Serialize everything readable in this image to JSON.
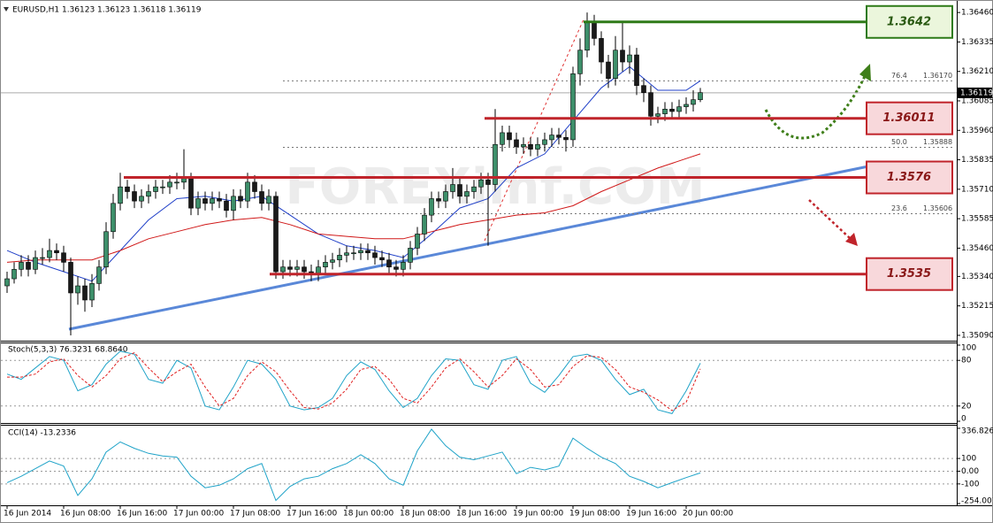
{
  "chart_data": [
    {
      "type": "candlestick",
      "title": "EURUSD,H1 1.36123 1.36123 1.36118 1.36119",
      "watermark": "FOREXimf.COM",
      "categories": [
        "16 Jun 2014",
        null,
        null,
        null,
        null,
        null,
        null,
        null,
        "16 Jun 08:00",
        null,
        null,
        null,
        null,
        null,
        null,
        null,
        "16 Jun 16:00",
        null,
        null,
        null,
        null,
        null,
        null,
        null,
        "17 Jun 00:00",
        null,
        null,
        null,
        null,
        null,
        null,
        null,
        "17 Jun 08:00",
        null,
        null,
        null,
        null,
        null,
        null,
        null,
        "17 Jun 16:00",
        null,
        null,
        null,
        null,
        null,
        null,
        null,
        "18 Jun 00:00",
        null,
        null,
        null,
        null,
        null,
        null,
        null,
        "18 Jun 08:00",
        null,
        null,
        null,
        null,
        null,
        null,
        null,
        "18 Jun 16:00",
        null,
        null,
        null,
        null,
        null,
        null,
        null,
        "19 Jun 00:00",
        null,
        null,
        null,
        null,
        null,
        null,
        null,
        "19 Jun 08:00",
        null,
        null,
        null,
        null,
        null,
        null,
        null,
        "19 Jun 16:00",
        null,
        null,
        null,
        null,
        null,
        null,
        null,
        "20 Jun 00:00",
        null,
        null
      ],
      "ohlc": [
        [
          1.353,
          1.3536,
          1.3527,
          1.3533
        ],
        [
          1.3533,
          1.354,
          1.3531,
          1.3537
        ],
        [
          1.3537,
          1.3543,
          1.3534,
          1.354
        ],
        [
          1.354,
          1.3543,
          1.3534,
          1.3537
        ],
        [
          1.3537,
          1.3545,
          1.3535,
          1.3542
        ],
        [
          1.3542,
          1.3546,
          1.3539,
          1.3542
        ],
        [
          1.3542,
          1.355,
          1.354,
          1.3545
        ],
        [
          1.3545,
          1.3548,
          1.3541,
          1.3544
        ],
        [
          1.3544,
          1.3547,
          1.3536,
          1.354
        ],
        [
          1.354,
          1.3542,
          1.3509,
          1.3527
        ],
        [
          1.3527,
          1.3534,
          1.3522,
          1.353
        ],
        [
          1.353,
          1.3533,
          1.3519,
          1.3524
        ],
        [
          1.3524,
          1.3535,
          1.3521,
          1.3531
        ],
        [
          1.3531,
          1.3541,
          1.3528,
          1.3538
        ],
        [
          1.3538,
          1.3557,
          1.3535,
          1.3553
        ],
        [
          1.3553,
          1.3569,
          1.355,
          1.3565
        ],
        [
          1.3565,
          1.3578,
          1.3562,
          1.3572
        ],
        [
          1.3572,
          1.3575,
          1.3567,
          1.357
        ],
        [
          1.357,
          1.3573,
          1.3563,
          1.3566
        ],
        [
          1.3566,
          1.3571,
          1.3563,
          1.3568
        ],
        [
          1.3568,
          1.3573,
          1.3565,
          1.357
        ],
        [
          1.357,
          1.3575,
          1.3567,
          1.3572
        ],
        [
          1.3572,
          1.3575,
          1.3569,
          1.3572
        ],
        [
          1.3572,
          1.3577,
          1.3569,
          1.3574
        ],
        [
          1.3574,
          1.3578,
          1.3571,
          1.3574
        ],
        [
          1.3574,
          1.3588,
          1.3571,
          1.3576
        ],
        [
          1.3576,
          1.3578,
          1.356,
          1.3563
        ],
        [
          1.3563,
          1.357,
          1.356,
          1.3567
        ],
        [
          1.3567,
          1.357,
          1.3562,
          1.3565
        ],
        [
          1.3565,
          1.357,
          1.3562,
          1.3567
        ],
        [
          1.3567,
          1.357,
          1.3563,
          1.3566
        ],
        [
          1.3566,
          1.3569,
          1.3559,
          1.3562
        ],
        [
          1.3562,
          1.3571,
          1.3558,
          1.3568
        ],
        [
          1.3568,
          1.3571,
          1.3563,
          1.3566
        ],
        [
          1.3566,
          1.3578,
          1.3563,
          1.3574
        ],
        [
          1.3574,
          1.3577,
          1.3567,
          1.357
        ],
        [
          1.357,
          1.3573,
          1.3562,
          1.3565
        ],
        [
          1.3565,
          1.3571,
          1.3562,
          1.3568
        ],
        [
          1.3568,
          1.357,
          1.3533,
          1.3536
        ],
        [
          1.3536,
          1.3541,
          1.3533,
          1.3538
        ],
        [
          1.3538,
          1.3541,
          1.3534,
          1.3537
        ],
        [
          1.3537,
          1.3541,
          1.3534,
          1.3538
        ],
        [
          1.3538,
          1.3541,
          1.3533,
          1.3536
        ],
        [
          1.3536,
          1.3539,
          1.3532,
          1.3535
        ],
        [
          1.3535,
          1.3541,
          1.3532,
          1.3538
        ],
        [
          1.3538,
          1.3543,
          1.3535,
          1.354
        ],
        [
          1.354,
          1.3544,
          1.3537,
          1.3541
        ],
        [
          1.3541,
          1.3546,
          1.3538,
          1.3543
        ],
        [
          1.3543,
          1.3547,
          1.354,
          1.3544
        ],
        [
          1.3544,
          1.3547,
          1.3541,
          1.3544
        ],
        [
          1.3544,
          1.3548,
          1.3541,
          1.3545
        ],
        [
          1.3545,
          1.3548,
          1.3541,
          1.3544
        ],
        [
          1.3544,
          1.3547,
          1.3539,
          1.3542
        ],
        [
          1.3542,
          1.3545,
          1.3538,
          1.3541
        ],
        [
          1.3541,
          1.3544,
          1.3535,
          1.3538
        ],
        [
          1.3538,
          1.3541,
          1.3534,
          1.3537
        ],
        [
          1.3537,
          1.3543,
          1.3534,
          1.354
        ],
        [
          1.354,
          1.3549,
          1.3537,
          1.3546
        ],
        [
          1.3546,
          1.3555,
          1.3543,
          1.3552
        ],
        [
          1.3552,
          1.3563,
          1.3549,
          1.356
        ],
        [
          1.356,
          1.357,
          1.3557,
          1.3567
        ],
        [
          1.3567,
          1.357,
          1.3563,
          1.3566
        ],
        [
          1.3566,
          1.3573,
          1.3563,
          1.357
        ],
        [
          1.357,
          1.358,
          1.3567,
          1.3573
        ],
        [
          1.3573,
          1.3576,
          1.3565,
          1.3568
        ],
        [
          1.3568,
          1.3573,
          1.3565,
          1.357
        ],
        [
          1.357,
          1.3575,
          1.3567,
          1.3572
        ],
        [
          1.3572,
          1.3578,
          1.3569,
          1.3575
        ],
        [
          1.3575,
          1.3578,
          1.3547,
          1.3573
        ],
        [
          1.3573,
          1.3605,
          1.357,
          1.359
        ],
        [
          1.359,
          1.3598,
          1.3587,
          1.3595
        ],
        [
          1.3595,
          1.3598,
          1.3589,
          1.3592
        ],
        [
          1.3592,
          1.3595,
          1.3586,
          1.3589
        ],
        [
          1.3589,
          1.3593,
          1.3586,
          1.359
        ],
        [
          1.359,
          1.3593,
          1.3585,
          1.3588
        ],
        [
          1.3588,
          1.3593,
          1.3585,
          1.359
        ],
        [
          1.359,
          1.3595,
          1.3587,
          1.3592
        ],
        [
          1.3592,
          1.3597,
          1.3589,
          1.3594
        ],
        [
          1.3594,
          1.3597,
          1.359,
          1.3593
        ],
        [
          1.3593,
          1.3596,
          1.3587,
          1.3592
        ],
        [
          1.3592,
          1.3623,
          1.3589,
          1.362
        ],
        [
          1.362,
          1.3635,
          1.3615,
          1.363
        ],
        [
          1.363,
          1.3646,
          1.3627,
          1.3642
        ],
        [
          1.3642,
          1.3645,
          1.3632,
          1.3635
        ],
        [
          1.3635,
          1.3638,
          1.362,
          1.3625
        ],
        [
          1.3625,
          1.3628,
          1.3614,
          1.3618
        ],
        [
          1.3618,
          1.3636,
          1.3615,
          1.363
        ],
        [
          1.363,
          1.3642,
          1.3621,
          1.3625
        ],
        [
          1.3625,
          1.3632,
          1.362,
          1.3628
        ],
        [
          1.3628,
          1.3631,
          1.3611,
          1.3615
        ],
        [
          1.3615,
          1.3618,
          1.3608,
          1.3612
        ],
        [
          1.3612,
          1.3615,
          1.3598,
          1.3602
        ],
        [
          1.3602,
          1.3606,
          1.3599,
          1.3603
        ],
        [
          1.3603,
          1.3608,
          1.36,
          1.3605
        ],
        [
          1.3605,
          1.3608,
          1.3601,
          1.3604
        ],
        [
          1.3604,
          1.3609,
          1.3601,
          1.3606
        ],
        [
          1.3606,
          1.361,
          1.3603,
          1.3607
        ],
        [
          1.3607,
          1.3613,
          1.3604,
          1.3609
        ],
        [
          1.3609,
          1.3614,
          1.3608,
          1.3612
        ]
      ],
      "up_color": "#3d8f6a",
      "down_color": "#1a1a1a",
      "ylim": [
        1.35071,
        1.36483
      ],
      "yticks": [
        {
          "value": 1.3646,
          "label": "1.36460"
        },
        1.36335,
        {
          "value": 1.3621,
          "label": "1.36210"
        },
        1.36085,
        {
          "value": 1.3596,
          "label": "1.35960"
        },
        1.35835,
        {
          "value": 1.3571,
          "label": "1.35710"
        },
        1.35585,
        {
          "value": 1.3546,
          "label": "1.35460"
        },
        {
          "value": 1.3534,
          "label": "1.35340"
        },
        1.35215,
        {
          "value": 1.3509,
          "label": "1.35090"
        }
      ],
      "last_price": 1.36119,
      "overlays": [
        {
          "color": "#1f3fc8",
          "x": [
            0,
            4,
            8,
            12,
            16,
            20,
            24,
            28,
            32,
            36,
            40,
            44,
            48,
            52,
            56,
            60,
            64,
            68,
            72,
            76,
            80,
            84,
            88,
            92,
            96,
            98
          ],
          "values": [
            1.3545,
            1.354,
            1.3536,
            1.3532,
            1.3545,
            1.3558,
            1.3567,
            1.3568,
            1.3566,
            1.3568,
            1.356,
            1.3552,
            1.3547,
            1.3545,
            1.3542,
            1.3552,
            1.3563,
            1.3567,
            1.358,
            1.3586,
            1.36,
            1.3614,
            1.3623,
            1.3613,
            1.3613,
            1.3617
          ]
        },
        {
          "color": "#d01818",
          "x": [
            0,
            4,
            8,
            12,
            16,
            20,
            24,
            28,
            32,
            36,
            40,
            44,
            48,
            52,
            56,
            60,
            64,
            68,
            72,
            76,
            80,
            84,
            88,
            92,
            96,
            98
          ],
          "values": [
            1.354,
            1.3541,
            1.3541,
            1.3541,
            1.3545,
            1.355,
            1.3553,
            1.3556,
            1.3558,
            1.3559,
            1.3556,
            1.3552,
            1.3551,
            1.355,
            1.355,
            1.3553,
            1.3556,
            1.3558,
            1.356,
            1.3561,
            1.3564,
            1.357,
            1.3575,
            1.358,
            1.3584,
            1.3586
          ]
        }
      ],
      "fib_levels": [
        {
          "level": "76.4",
          "price": {
            "value": 1.3617,
            "label": "1.36170"
          }
        },
        {
          "level": "50.0",
          "price": 1.35888
        },
        {
          "level": "23.6",
          "price": 1.35606
        }
      ],
      "levels": [
        {
          "value": 1.3642,
          "color": "#2e7a18",
          "fill": "#ebf6dc",
          "text_color": "#2a5a12"
        },
        {
          "value": 1.36011,
          "color": "#c0242b",
          "fill": "#f8d8db",
          "text_color": "#8a1818"
        },
        {
          "value": 1.3576,
          "color": "#c0242b",
          "fill": "#f8d8db",
          "text_color": "#8a1818"
        },
        {
          "value": 1.3535,
          "color": "#c0242b",
          "fill": "#f8d8db",
          "text_color": "#8a1818"
        }
      ]
    },
    {
      "type": "line",
      "title": "Stoch(5,3,3) 76.3231 68.8640",
      "x": [
        0,
        2,
        4,
        6,
        8,
        10,
        12,
        14,
        16,
        18,
        20,
        22,
        24,
        26,
        28,
        30,
        32,
        34,
        36,
        38,
        40,
        42,
        44,
        46,
        48,
        50,
        52,
        54,
        56,
        58,
        60,
        62,
        64,
        66,
        68,
        70,
        72,
        74,
        76,
        78,
        80,
        82,
        84,
        86,
        88,
        90,
        92,
        94,
        96,
        98
      ],
      "series": [
        {
          "color": "#1fa3c8",
          "dashed": false,
          "values": [
            62,
            55,
            70,
            85,
            80,
            40,
            48,
            75,
            92,
            88,
            55,
            50,
            80,
            70,
            20,
            15,
            45,
            80,
            75,
            55,
            20,
            15,
            18,
            30,
            60,
            78,
            68,
            40,
            18,
            30,
            60,
            82,
            80,
            48,
            42,
            80,
            85,
            50,
            38,
            60,
            85,
            88,
            80,
            55,
            35,
            42,
            15,
            10,
            40,
            76.3231
          ]
        },
        {
          "color": "#e02020",
          "dashed": true,
          "values": [
            58,
            58,
            62,
            78,
            82,
            60,
            45,
            60,
            82,
            90,
            70,
            52,
            65,
            75,
            45,
            20,
            30,
            60,
            78,
            65,
            40,
            18,
            16,
            24,
            42,
            68,
            72,
            55,
            30,
            24,
            45,
            70,
            82,
            65,
            45,
            60,
            82,
            68,
            45,
            48,
            72,
            86,
            84,
            68,
            45,
            38,
            28,
            14,
            25,
            68.864
          ]
        }
      ],
      "ylim": [
        0,
        100
      ],
      "yticks": [
        100,
        80,
        20,
        0
      ]
    },
    {
      "type": "line",
      "title": "CCI(14) -13.2336",
      "x": [
        0,
        2,
        4,
        6,
        8,
        10,
        12,
        14,
        16,
        18,
        20,
        22,
        24,
        26,
        28,
        30,
        32,
        34,
        36,
        38,
        40,
        42,
        44,
        46,
        48,
        50,
        52,
        54,
        56,
        58,
        60,
        62,
        64,
        66,
        68,
        70,
        72,
        74,
        76,
        78,
        80,
        82,
        84,
        86,
        88,
        90,
        92,
        94,
        96,
        98
      ],
      "series": [
        {
          "color": "#1fa3c8",
          "dashed": false,
          "values": [
            -90,
            -40,
            20,
            80,
            40,
            -190,
            -60,
            150,
            230,
            180,
            140,
            120,
            110,
            -40,
            -130,
            -110,
            -60,
            20,
            60,
            -230,
            -120,
            -60,
            -40,
            20,
            60,
            130,
            60,
            -60,
            -110,
            160,
            330,
            200,
            110,
            90,
            120,
            150,
            -20,
            30,
            10,
            40,
            260,
            180,
            110,
            60,
            -40,
            -80,
            -130,
            -90,
            -50,
            -13.2336
          ]
        }
      ],
      "ylim": [
        -254.001,
        336.8261
      ],
      "yticks": [
        336.8261,
        100,
        {
          "value": 0,
          "label": "0.00"
        },
        -100,
        -254.001
      ]
    }
  ]
}
